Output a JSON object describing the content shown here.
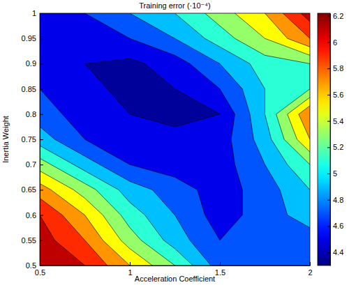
{
  "chart_data": {
    "type": "contour",
    "title": "Training error (·10⁻⁴)",
    "x_label": "Acceleration Coefficient",
    "y_label": "Inertia Weight",
    "x": [
      0.5,
      0.75,
      1,
      1.25,
      1.5,
      1.75,
      2
    ],
    "y": [
      0.5,
      0.55,
      0.6,
      0.65,
      0.7,
      0.75,
      0.8,
      0.85,
      0.9,
      0.95,
      1
    ],
    "z": [
      [
        6.2,
        6.0,
        5.6,
        5.2,
        4.7,
        4.6,
        4.6
      ],
      [
        6.1,
        5.8,
        5.3,
        4.9,
        4.6,
        4.6,
        4.7
      ],
      [
        6.0,
        5.6,
        5.1,
        4.8,
        4.5,
        4.7,
        4.9
      ],
      [
        5.7,
        5.3,
        4.9,
        4.7,
        4.5,
        4.7,
        5.0
      ],
      [
        5.3,
        4.9,
        4.6,
        4.5,
        4.5,
        4.8,
        5.2
      ],
      [
        4.9,
        4.6,
        4.5,
        4.45,
        4.5,
        4.9,
        5.6
      ],
      [
        4.7,
        4.5,
        4.4,
        4.35,
        4.4,
        5.0,
        5.8
      ],
      [
        4.6,
        4.45,
        4.35,
        4.4,
        4.6,
        5.0,
        5.2
      ],
      [
        4.5,
        4.4,
        4.35,
        4.5,
        4.8,
        5.1,
        5.2
      ],
      [
        4.5,
        4.5,
        4.6,
        4.8,
        5.1,
        5.4,
        5.8
      ],
      [
        4.6,
        4.6,
        4.8,
        5.0,
        5.3,
        5.6,
        6.1
      ]
    ],
    "xlim": [
      0.5,
      2
    ],
    "xticks": [
      0.5,
      1,
      1.5,
      2
    ],
    "ylim": [
      0.5,
      1
    ],
    "yticks": [
      0.5,
      0.55,
      0.6,
      0.65,
      0.7,
      0.75,
      0.8,
      0.85,
      0.9,
      0.95,
      1
    ],
    "colorbar_range": [
      4.3,
      6.22
    ],
    "colorbar_ticks": [
      4.4,
      4.6,
      4.8,
      5,
      5.2,
      5.4,
      5.6,
      5.8,
      6,
      6.2
    ]
  }
}
